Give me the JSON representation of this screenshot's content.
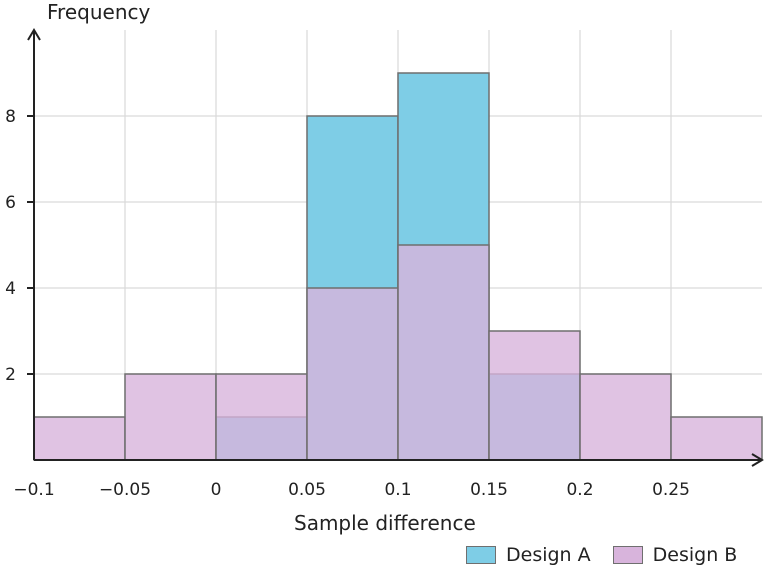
{
  "chart_data": {
    "type": "histogram",
    "ylabel": "Frequency",
    "xlabel": "Sample difference",
    "xlim": [
      -0.1,
      0.3
    ],
    "ylim": [
      0,
      10
    ],
    "x_ticks": [
      {
        "value": -0.1,
        "label": "−0.1"
      },
      {
        "value": -0.05,
        "label": "−0.05"
      },
      {
        "value": 0,
        "label": "0"
      },
      {
        "value": 0.05,
        "label": "0.05"
      },
      {
        "value": 0.1,
        "label": "0.1"
      },
      {
        "value": 0.15,
        "label": "0.15"
      },
      {
        "value": 0.2,
        "label": "0.2"
      },
      {
        "value": 0.25,
        "label": "0.25"
      }
    ],
    "y_ticks": [
      {
        "value": 2,
        "label": "2"
      },
      {
        "value": 4,
        "label": "4"
      },
      {
        "value": 6,
        "label": "6"
      },
      {
        "value": 8,
        "label": "8"
      }
    ],
    "grid": true,
    "bin_edges": [
      -0.1,
      -0.05,
      0,
      0.05,
      0.1,
      0.15,
      0.2,
      0.25,
      0.3
    ],
    "series": [
      {
        "name": "Design A",
        "color": "#7ecde6",
        "counts": [
          0,
          0,
          1,
          8,
          9,
          2,
          0,
          0
        ]
      },
      {
        "name": "Design B",
        "color": "#d8b4dc",
        "counts": [
          1,
          2,
          2,
          4,
          5,
          3,
          2,
          1
        ]
      }
    ],
    "legend_position": "bottom-right"
  }
}
